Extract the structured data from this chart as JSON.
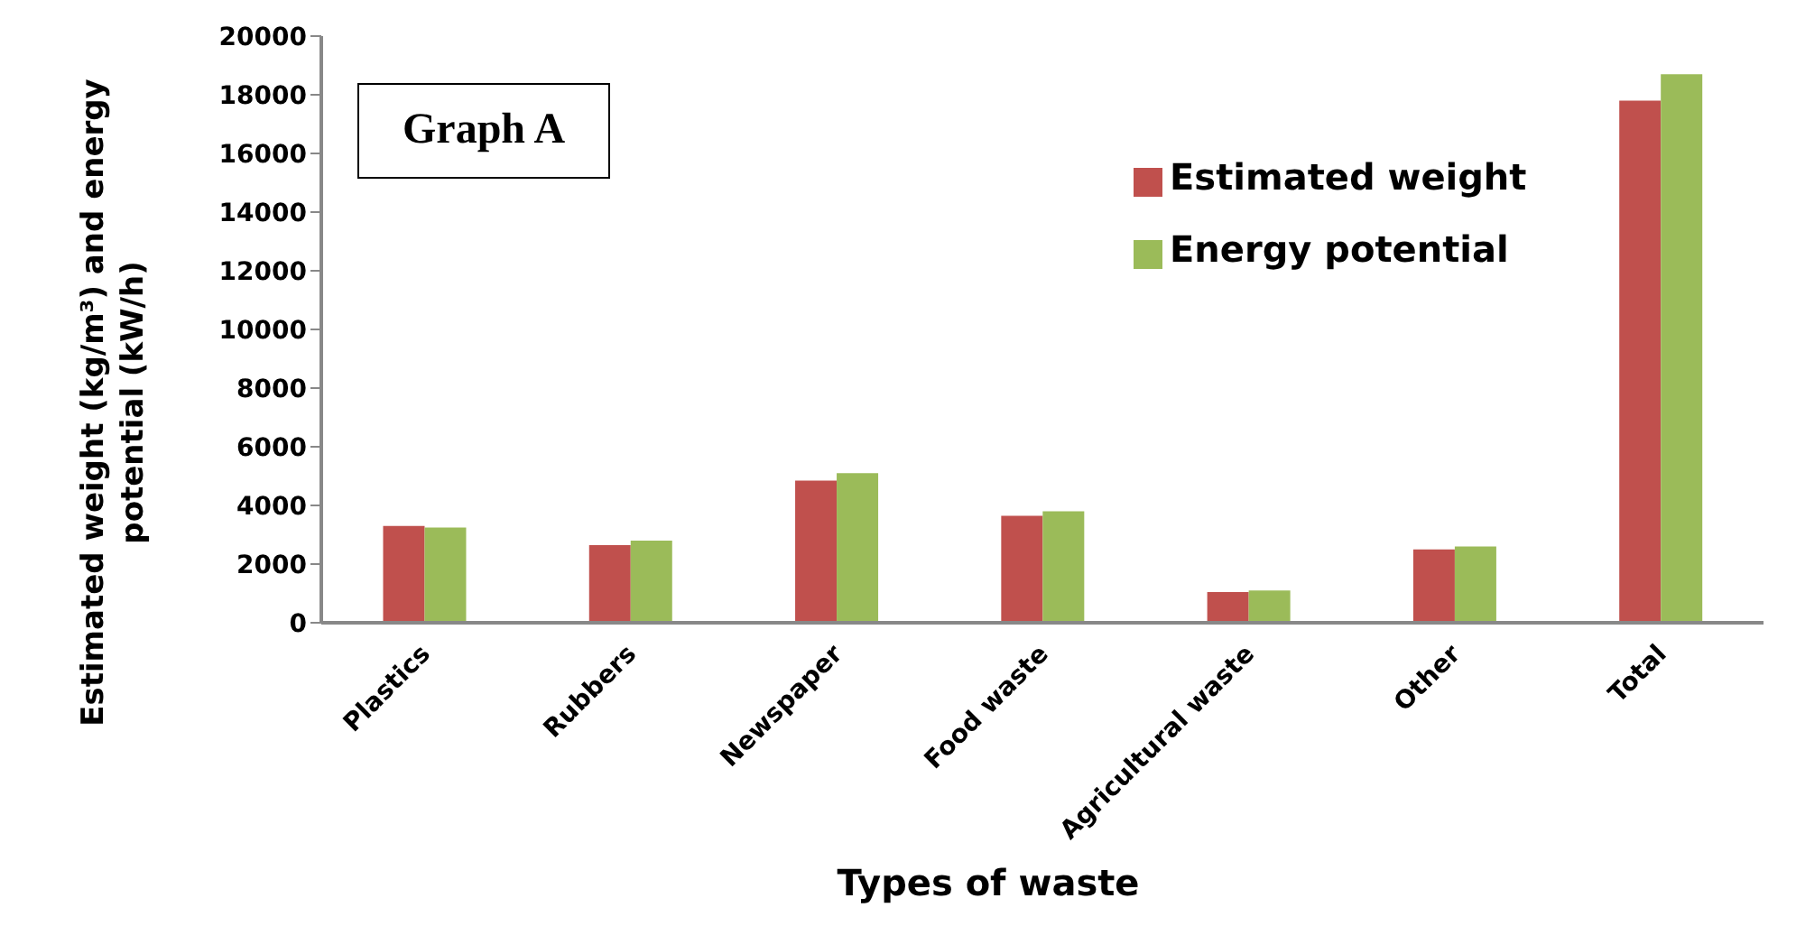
{
  "chart_data": {
    "type": "bar",
    "title": "Graph A",
    "xlabel": "Types of waste",
    "ylabel": "Estimated weight (kg/m³) and energy potential (kW/h)",
    "categories": [
      "Plastics",
      "Rubbers",
      "Newspaper",
      "Food waste",
      "Agricultural waste",
      "Other",
      "Total"
    ],
    "series": [
      {
        "name": "Estimated weight",
        "color": "#c0504d",
        "values": [
          3300,
          2650,
          4850,
          3650,
          1050,
          2500,
          17800
        ]
      },
      {
        "name": "Energy potential",
        "color": "#9bbb59",
        "values": [
          3250,
          2800,
          5100,
          3800,
          1100,
          2600,
          18700
        ]
      }
    ],
    "ylim": [
      0,
      20000
    ],
    "yticks": [
      0,
      2000,
      4000,
      6000,
      8000,
      10000,
      12000,
      14000,
      16000,
      18000,
      20000
    ],
    "grid": false,
    "legend": "top right"
  }
}
